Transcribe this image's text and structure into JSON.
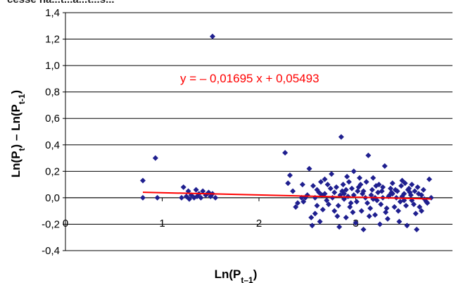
{
  "chart_data": {
    "type": "scatter",
    "caption_partial": "cesse na...t...a...t...s...",
    "xlabel": {
      "main": "Ln(P",
      "sub": "t–1",
      "close": ")"
    },
    "ylabel": {
      "a_main": "Ln(P",
      "a_sub": "t",
      "a_close": ")",
      "minus": " – ",
      "b_main": "Ln(P",
      "b_sub": "t-1",
      "b_close": ")"
    },
    "xlim": [
      0,
      4
    ],
    "ylim": [
      -0.4,
      1.4
    ],
    "x_ticks": [
      0,
      1,
      2,
      3
    ],
    "y_ticks": [
      -0.4,
      -0.2,
      0.0,
      0.2,
      0.4,
      0.6,
      0.8,
      1.0,
      1.2,
      1.4
    ],
    "x_tick_labels": [
      "0",
      "1",
      "2",
      "3"
    ],
    "y_tick_labels": [
      "-0,4",
      "-0,2",
      "0,0",
      "0,2",
      "0,4",
      "0,6",
      "0,8",
      "1,0",
      "1,2",
      "1,4"
    ],
    "grid": "horizontal",
    "legend": "none",
    "marker_color": "#1f1f8f",
    "trend_color": "#ff0000",
    "trendline": {
      "slope": -0.01695,
      "intercept": 0.05493,
      "x_range": [
        0.8,
        3.78
      ]
    },
    "equation_label": "y  =  – 0,01695 x + 0,05493",
    "series": [
      {
        "points": [
          [
            0.8,
            0.13
          ],
          [
            0.8,
            0.0
          ],
          [
            0.93,
            0.3
          ],
          [
            0.95,
            0.0
          ],
          [
            1.52,
            1.22
          ],
          [
            1.22,
            0.08
          ],
          [
            1.2,
            0.0
          ],
          [
            1.25,
            0.01
          ],
          [
            1.27,
            0.05
          ],
          [
            1.3,
            0.02
          ],
          [
            1.33,
            0.0
          ],
          [
            1.35,
            0.06
          ],
          [
            1.38,
            0.03
          ],
          [
            1.4,
            0.0
          ],
          [
            1.42,
            0.05
          ],
          [
            1.45,
            0.02
          ],
          [
            1.48,
            0.04
          ],
          [
            1.5,
            0.01
          ],
          [
            1.52,
            0.03
          ],
          [
            1.55,
            0.0
          ],
          [
            1.28,
            -0.01
          ],
          [
            1.36,
            0.01
          ],
          [
            2.27,
            0.34
          ],
          [
            2.3,
            0.11
          ],
          [
            2.32,
            0.17
          ],
          [
            2.35,
            0.05
          ],
          [
            2.38,
            -0.07
          ],
          [
            2.4,
            -0.04
          ],
          [
            2.45,
            0.1
          ],
          [
            2.48,
            0.0
          ],
          [
            2.52,
            0.22
          ],
          [
            2.55,
            -0.21
          ],
          [
            2.58,
            -0.12
          ],
          [
            2.6,
            0.06
          ],
          [
            2.63,
            -0.18
          ],
          [
            2.65,
            0.02
          ],
          [
            2.68,
            0.14
          ],
          [
            2.72,
            -0.05
          ],
          [
            2.75,
            0.18
          ],
          [
            2.78,
            -0.1
          ],
          [
            2.8,
            0.08
          ],
          [
            2.83,
            -0.22
          ],
          [
            2.85,
            0.46
          ],
          [
            2.88,
            0.03
          ],
          [
            2.9,
            -0.15
          ],
          [
            2.93,
            0.12
          ],
          [
            2.95,
            -0.04
          ],
          [
            2.98,
            0.2
          ],
          [
            3.0,
            -0.19
          ],
          [
            3.02,
            0.05
          ],
          [
            3.05,
            0.1
          ],
          [
            3.08,
            -0.24
          ],
          [
            3.1,
            0.0
          ],
          [
            3.13,
            0.32
          ],
          [
            3.15,
            -0.08
          ],
          [
            3.18,
            0.15
          ],
          [
            3.2,
            -0.13
          ],
          [
            3.23,
            0.04
          ],
          [
            3.25,
            -0.2
          ],
          [
            3.28,
            0.08
          ],
          [
            3.3,
            0.24
          ],
          [
            3.33,
            -0.16
          ],
          [
            3.35,
            0.02
          ],
          [
            3.38,
            0.11
          ],
          [
            3.4,
            -0.07
          ],
          [
            3.43,
            0.05
          ],
          [
            3.45,
            -0.18
          ],
          [
            3.48,
            0.13
          ],
          [
            3.5,
            -0.02
          ],
          [
            3.53,
            -0.21
          ],
          [
            3.55,
            0.07
          ],
          [
            3.58,
            0.1
          ],
          [
            3.6,
            -0.05
          ],
          [
            3.63,
            -0.24
          ],
          [
            3.65,
            0.03
          ],
          [
            3.68,
            -0.1
          ],
          [
            3.7,
            0.06
          ],
          [
            3.73,
            -0.03
          ],
          [
            3.76,
            0.14
          ],
          [
            3.78,
            0.0
          ],
          [
            2.62,
            0.04
          ],
          [
            2.7,
            -0.02
          ],
          [
            2.74,
            0.07
          ],
          [
            2.82,
            -0.06
          ],
          [
            2.87,
            0.1
          ],
          [
            2.92,
            0.01
          ],
          [
            2.97,
            -0.11
          ],
          [
            3.03,
            0.08
          ],
          [
            3.07,
            0.03
          ],
          [
            3.12,
            -0.04
          ],
          [
            3.17,
            0.06
          ],
          [
            3.22,
            -0.02
          ],
          [
            3.27,
            0.05
          ],
          [
            3.32,
            -0.08
          ],
          [
            3.37,
            0.04
          ],
          [
            3.42,
            0.0
          ],
          [
            3.47,
            0.09
          ],
          [
            3.52,
            -0.06
          ],
          [
            3.57,
            0.02
          ],
          [
            3.62,
            -0.12
          ],
          [
            2.66,
            -0.09
          ],
          [
            2.76,
            0.0
          ],
          [
            2.86,
            0.05
          ],
          [
            2.96,
            0.07
          ],
          [
            3.06,
            -0.1
          ],
          [
            3.16,
            0.02
          ],
          [
            3.26,
            -0.05
          ],
          [
            3.36,
            0.07
          ],
          [
            3.46,
            -0.03
          ],
          [
            3.56,
            0.04
          ],
          [
            3.66,
            -0.07
          ],
          [
            2.56,
            0.09
          ],
          [
            2.5,
            0.02
          ],
          [
            2.46,
            -0.03
          ],
          [
            2.58,
            0.0
          ],
          [
            2.68,
            0.03
          ],
          [
            2.78,
            0.04
          ],
          [
            2.88,
            -0.01
          ],
          [
            2.98,
            0.02
          ],
          [
            3.08,
            0.05
          ],
          [
            3.18,
            -0.01
          ],
          [
            3.28,
            0.0
          ],
          [
            3.38,
            0.03
          ],
          [
            3.48,
            0.01
          ],
          [
            3.58,
            -0.02
          ],
          [
            3.68,
            0.02
          ],
          [
            2.71,
            0.1
          ],
          [
            2.81,
            -0.14
          ],
          [
            2.91,
            0.16
          ],
          [
            3.01,
            -0.03
          ],
          [
            3.11,
            0.12
          ],
          [
            3.21,
            0.09
          ],
          [
            3.31,
            -0.11
          ],
          [
            3.41,
            0.06
          ],
          [
            3.51,
            0.11
          ],
          [
            3.61,
            0.05
          ],
          [
            3.71,
            -0.01
          ],
          [
            2.6,
            -0.06
          ],
          [
            2.9,
            0.06
          ],
          [
            3.2,
            0.0
          ],
          [
            3.5,
            0.03
          ],
          [
            2.44,
            0.0
          ],
          [
            2.54,
            -0.15
          ],
          [
            2.64,
            0.12
          ],
          [
            2.84,
            0.02
          ],
          [
            2.94,
            -0.07
          ],
          [
            3.04,
            0.15
          ],
          [
            3.14,
            -0.14
          ],
          [
            3.24,
            0.1
          ],
          [
            3.34,
            0.01
          ],
          [
            3.44,
            -0.1
          ],
          [
            3.54,
            0.06
          ],
          [
            3.64,
            0.08
          ],
          [
            3.74,
            -0.04
          ]
        ]
      }
    ]
  }
}
